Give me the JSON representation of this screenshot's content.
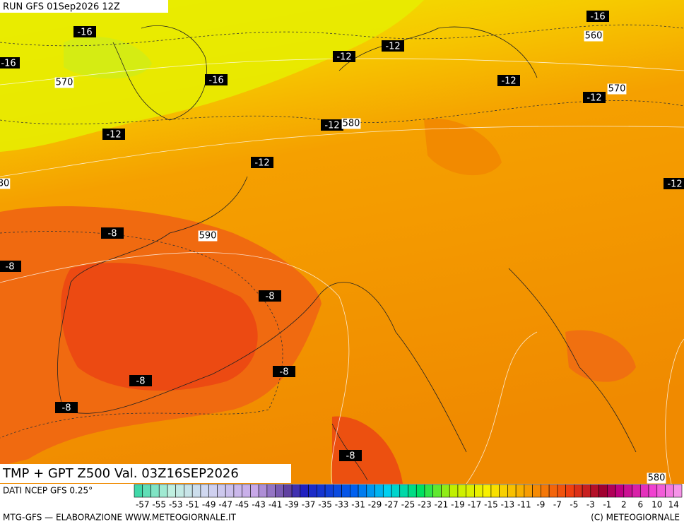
{
  "header": {
    "run": "RUN GFS 01Sep2026 12Z"
  },
  "map": {
    "title": "TMP + GPT Z500 Val. 03Z16SEP2026",
    "temperature_labels": [
      "-16",
      "-16",
      "-16",
      "-16",
      "-12",
      "-12",
      "-12",
      "-12",
      "-12",
      "-12",
      "-12",
      "-12",
      "-8",
      "-8",
      "-8",
      "-8",
      "-8",
      "-8",
      "-8"
    ],
    "height_labels": [
      "570",
      "580",
      "590",
      "560",
      "570",
      "580",
      "80"
    ]
  },
  "legend": {
    "source": "DATI NCEP GFS 0.25°",
    "scale": [
      "-57",
      "-55",
      "-53",
      "-51",
      "-49",
      "-47",
      "-45",
      "-43",
      "-41",
      "-39",
      "-37",
      "-35",
      "-33",
      "-31",
      "-29",
      "-27",
      "-25",
      "-23",
      "-21",
      "-19",
      "-17",
      "-15",
      "-13",
      "-11",
      "-9",
      "-7",
      "-5",
      "-3",
      "-1",
      "2",
      "6",
      "10",
      "14"
    ]
  },
  "footer": {
    "left": "MTG-GFS — ELABORAZIONE WWW.METEOGIORNALE.IT",
    "right": "(C) METEOGIORNALE"
  }
}
